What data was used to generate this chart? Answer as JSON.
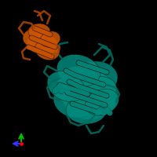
{
  "background_color": "#000000",
  "figsize": [
    2.0,
    2.0
  ],
  "dpi": 100,
  "teal_color": "#00897B",
  "orange_color": "#CC5500",
  "teal_dark": "#00695C",
  "orange_dark": "#AA4400",
  "axis_x_color": "#3333FF",
  "axis_y_color": "#00BB00",
  "axis_origin_color": "#FF0000"
}
